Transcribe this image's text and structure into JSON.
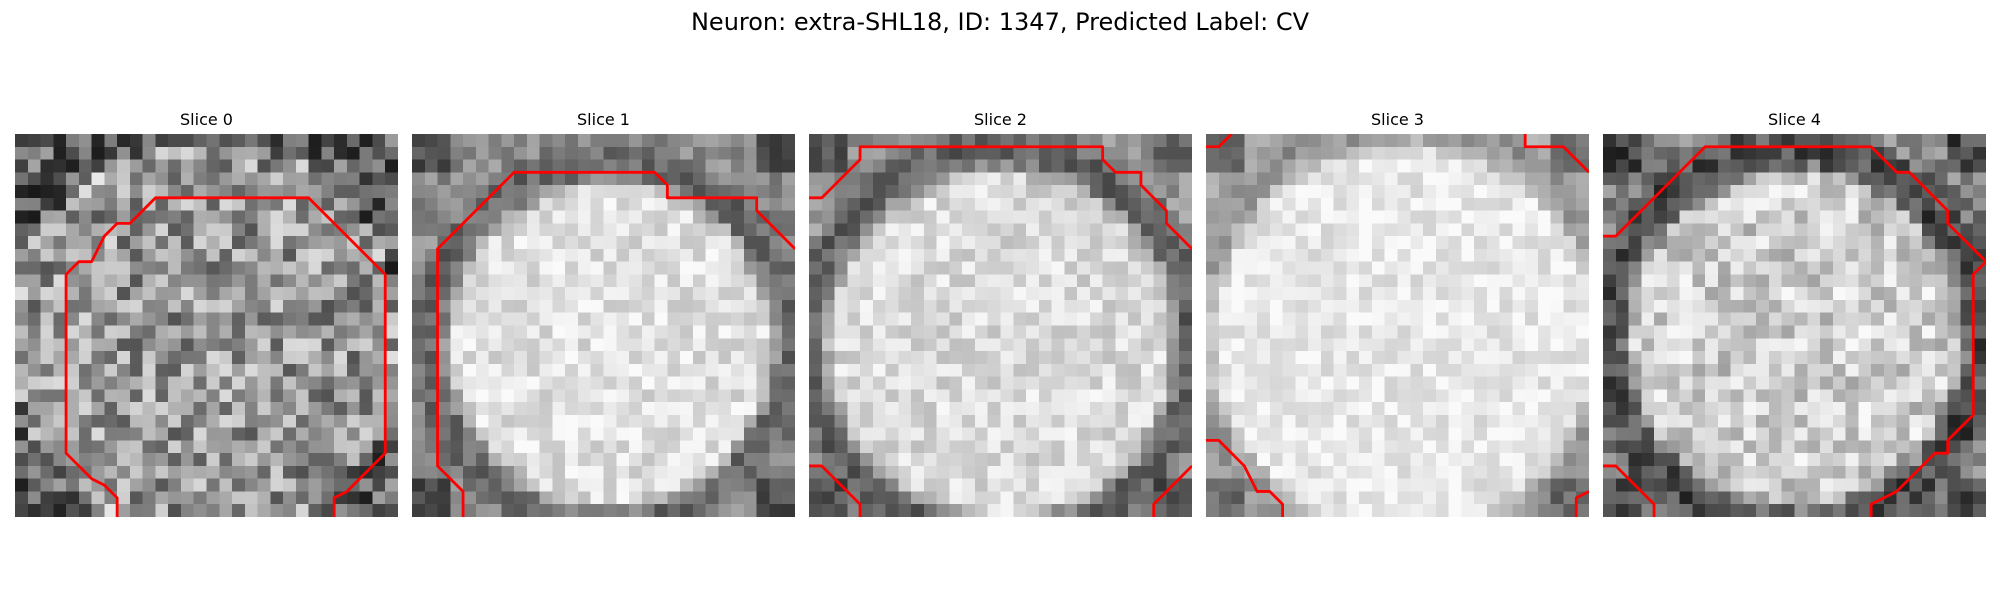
{
  "figure": {
    "title": "Neuron: extra-SHL18, ID: 1347, Predicted Label: CV"
  },
  "panels": [
    {
      "title": "Slice 0",
      "brightness": "dim",
      "contour_color": "#ff0000"
    },
    {
      "title": "Slice 1",
      "brightness": "bright",
      "contour_color": "#ff0000"
    },
    {
      "title": "Slice 2",
      "brightness": "bright",
      "contour_color": "#ff0000"
    },
    {
      "title": "Slice 3",
      "brightness": "very-bright",
      "contour_color": "#ff0000"
    },
    {
      "title": "Slice 4",
      "brightness": "bright",
      "contour_color": "#ff0000"
    }
  ]
}
